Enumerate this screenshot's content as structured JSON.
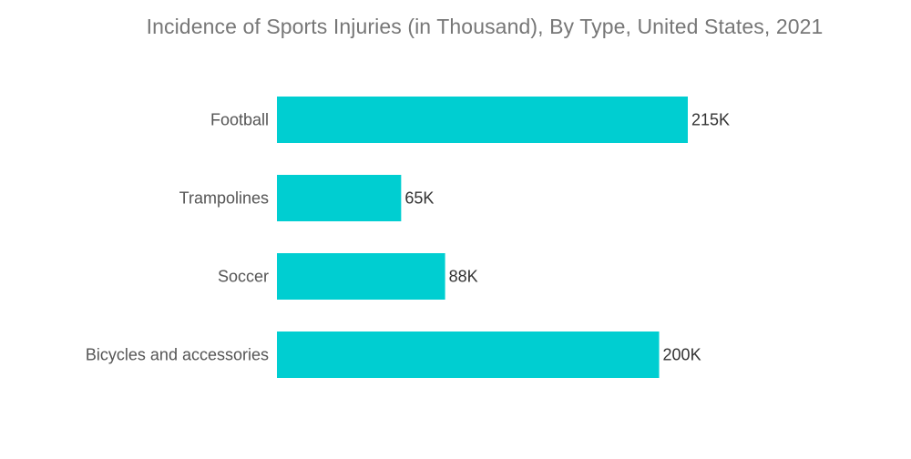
{
  "chart_data": {
    "type": "bar",
    "orientation": "horizontal",
    "title": "Incidence of Sports Injuries (in Thousand), By Type, United States, 2021",
    "categories": [
      "Football",
      "Trampolines",
      "Soccer",
      "Bicycles and accessories"
    ],
    "values": [
      215,
      65,
      88,
      200
    ],
    "value_labels": [
      "215K",
      "65K",
      "88K",
      "200K"
    ],
    "xlabel": "",
    "ylabel": "",
    "xlim": [
      0,
      215
    ],
    "grid": false,
    "legend": "none",
    "bar_color": "#00CED1"
  }
}
